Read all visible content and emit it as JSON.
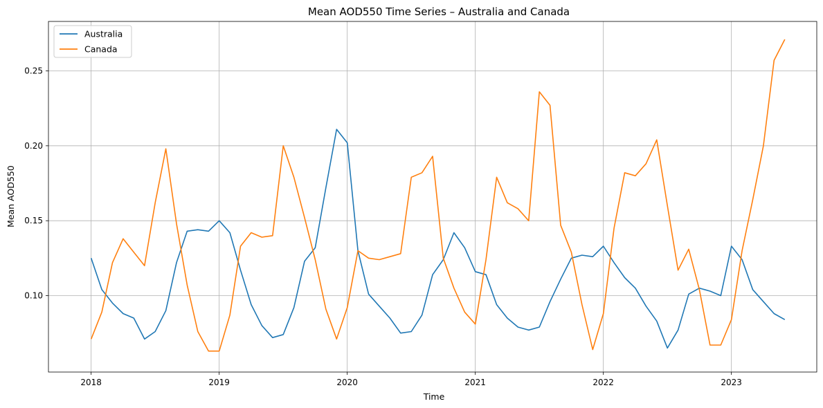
{
  "chart_data": {
    "type": "line",
    "title": "Mean AOD550 Time Series – Australia and Canada",
    "xlabel": "Time",
    "ylabel": "Mean AOD550",
    "xlim": [
      "2017-09-01",
      "2023-09-01"
    ],
    "ylim": [
      0.049,
      0.283
    ],
    "x_ticks": [
      "2018",
      "2019",
      "2020",
      "2021",
      "2022",
      "2023"
    ],
    "y_ticks": [
      0.1,
      0.15,
      0.2,
      0.25
    ],
    "y_tick_labels": [
      "0.10",
      "0.15",
      "0.20",
      "0.25"
    ],
    "grid": true,
    "legend_position": "top-left",
    "x": [
      "2018-01",
      "2018-02",
      "2018-03",
      "2018-04",
      "2018-05",
      "2018-06",
      "2018-07",
      "2018-08",
      "2018-09",
      "2018-10",
      "2018-11",
      "2018-12",
      "2019-01",
      "2019-02",
      "2019-03",
      "2019-04",
      "2019-05",
      "2019-06",
      "2019-07",
      "2019-08",
      "2019-09",
      "2019-10",
      "2019-11",
      "2019-12",
      "2020-01",
      "2020-02",
      "2020-03",
      "2020-04",
      "2020-05",
      "2020-06",
      "2020-07",
      "2020-08",
      "2020-09",
      "2020-10",
      "2020-11",
      "2020-12",
      "2021-01",
      "2021-02",
      "2021-03",
      "2021-04",
      "2021-05",
      "2021-06",
      "2021-07",
      "2021-08",
      "2021-09",
      "2021-10",
      "2021-11",
      "2021-12",
      "2022-01",
      "2022-02",
      "2022-03",
      "2022-04",
      "2022-05",
      "2022-06",
      "2022-07",
      "2022-08",
      "2022-09",
      "2022-10",
      "2022-11",
      "2022-12",
      "2023-01",
      "2023-02",
      "2023-03",
      "2023-04",
      "2023-05",
      "2023-06"
    ],
    "series": [
      {
        "name": "Australia",
        "color": "#1f77b4",
        "values": [
          0.125,
          0.104,
          0.095,
          0.088,
          0.085,
          0.071,
          0.076,
          0.09,
          0.122,
          0.143,
          0.144,
          0.143,
          0.15,
          0.142,
          0.117,
          0.094,
          0.08,
          0.072,
          0.074,
          0.092,
          0.123,
          0.132,
          0.172,
          0.211,
          0.202,
          0.13,
          0.101,
          0.093,
          0.085,
          0.075,
          0.076,
          0.087,
          0.114,
          0.124,
          0.142,
          0.132,
          0.116,
          0.114,
          0.094,
          0.085,
          0.079,
          0.077,
          0.079,
          0.096,
          0.111,
          0.125,
          0.127,
          0.126,
          0.133,
          0.122,
          0.112,
          0.105,
          0.093,
          0.083,
          0.065,
          0.077,
          0.101,
          0.105,
          0.103,
          0.1,
          0.133,
          0.124,
          0.104,
          0.096,
          0.088,
          0.084
        ]
      },
      {
        "name": "Canada",
        "color": "#ff7f0e",
        "values": [
          0.071,
          0.089,
          0.122,
          0.138,
          0.129,
          0.12,
          0.162,
          0.198,
          0.148,
          0.107,
          0.076,
          0.063,
          0.063,
          0.087,
          0.133,
          0.142,
          0.139,
          0.14,
          0.2,
          0.179,
          0.152,
          0.124,
          0.091,
          0.071,
          0.092,
          0.13,
          0.125,
          0.124,
          0.126,
          0.128,
          0.179,
          0.182,
          0.193,
          0.125,
          0.105,
          0.089,
          0.081,
          0.124,
          0.179,
          0.162,
          0.158,
          0.15,
          0.236,
          0.227,
          0.147,
          0.129,
          0.094,
          0.064,
          0.088,
          0.145,
          0.182,
          0.18,
          0.188,
          0.204,
          0.16,
          0.117,
          0.131,
          0.104,
          0.067,
          0.067,
          0.084,
          0.13,
          0.164,
          0.2,
          0.257,
          0.271
        ]
      }
    ]
  }
}
